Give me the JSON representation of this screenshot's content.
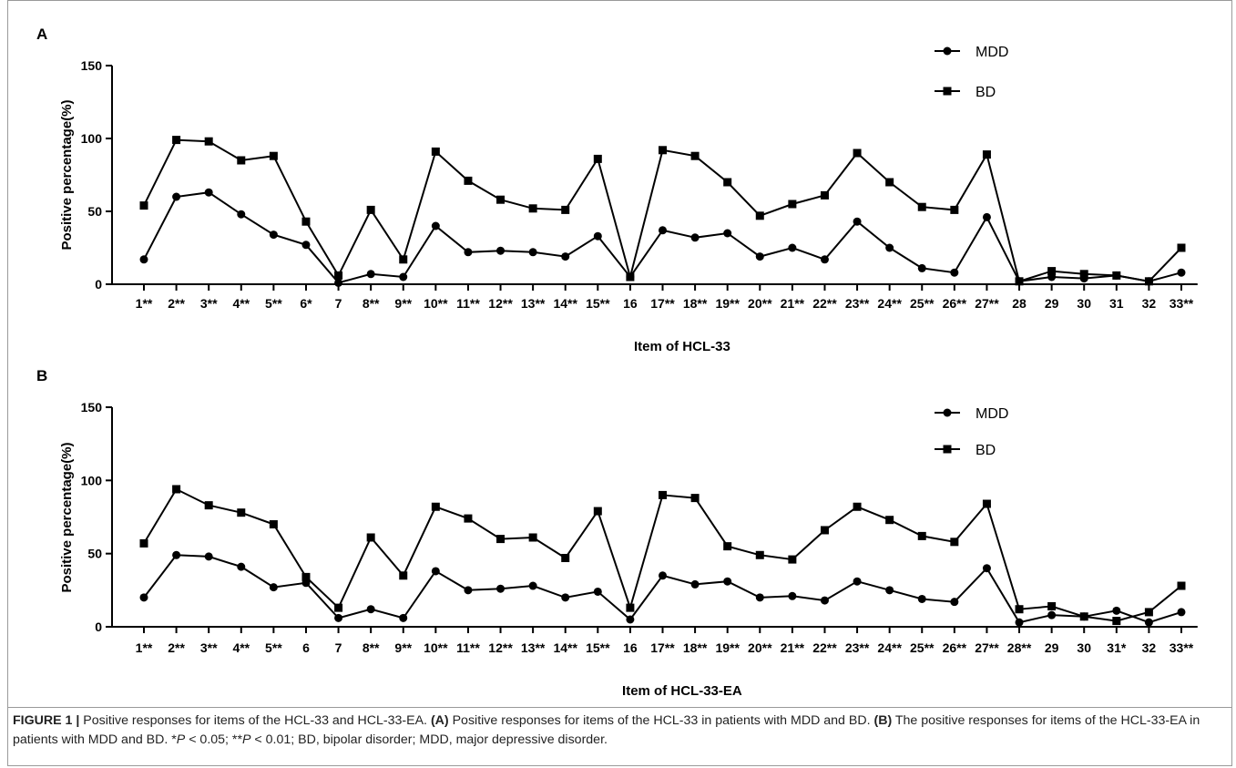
{
  "caption": {
    "label": "FIGURE 1 |",
    "text_1": " Positive responses for items of the HCL-33 and HCL-33-EA. ",
    "panel_a_ref": "(A)",
    "text_2": " Positive responses for items of the HCL-33 in patients with MDD and BD. ",
    "panel_b_ref": "(B)",
    "text_3": " The positive responses for items of the HCL-33-EA in patients with MDD and BD. *",
    "p_symbol_1": "P",
    "text_4": " < 0.05; **",
    "p_symbol_2": "P",
    "text_5": " < 0.01; BD, bipolar disorder; MDD, major depressive disorder."
  },
  "colors": {
    "line": "#000000",
    "background": "#ffffff",
    "frame": "#9a9a9a"
  },
  "chart_data": [
    {
      "panel": "A",
      "type": "line",
      "xlabel": "Item of HCL-33",
      "ylabel": "Positive percentage(%)",
      "ylim": [
        0,
        150
      ],
      "yticks": [
        0,
        50,
        100,
        150
      ],
      "grid": false,
      "legend_position": "top-right",
      "categories": [
        "1**",
        "2**",
        "3**",
        "4**",
        "5**",
        "6*",
        "7",
        "8**",
        "9**",
        "10**",
        "11**",
        "12**",
        "13**",
        "14**",
        "15**",
        "16",
        "17**",
        "18**",
        "19**",
        "20**",
        "21**",
        "22**",
        "23**",
        "24**",
        "25**",
        "26**",
        "27**",
        "28",
        "29",
        "30",
        "31",
        "32",
        "33**"
      ],
      "series": [
        {
          "name": "MDD",
          "marker": "circle",
          "values": [
            17,
            60,
            63,
            48,
            34,
            27,
            1,
            7,
            5,
            40,
            22,
            23,
            22,
            19,
            33,
            5,
            37,
            32,
            35,
            19,
            25,
            17,
            43,
            25,
            11,
            8,
            46,
            2,
            5,
            4,
            6,
            2,
            8
          ]
        },
        {
          "name": "BD",
          "marker": "square",
          "values": [
            54,
            99,
            98,
            85,
            88,
            43,
            6,
            51,
            17,
            91,
            71,
            58,
            52,
            51,
            86,
            5,
            92,
            88,
            70,
            47,
            55,
            61,
            90,
            70,
            53,
            51,
            89,
            2,
            9,
            7,
            6,
            2,
            25
          ]
        }
      ]
    },
    {
      "panel": "B",
      "type": "line",
      "xlabel": "Item of HCL-33-EA",
      "ylabel": "Positive percentage(%)",
      "ylim": [
        0,
        150
      ],
      "yticks": [
        0,
        50,
        100,
        150
      ],
      "grid": false,
      "legend_position": "top-right",
      "categories": [
        "1**",
        "2**",
        "3**",
        "4**",
        "5**",
        "6",
        "7",
        "8**",
        "9**",
        "10**",
        "11**",
        "12**",
        "13**",
        "14**",
        "15**",
        "16",
        "17**",
        "18**",
        "19**",
        "20**",
        "21**",
        "22**",
        "23**",
        "24**",
        "25**",
        "26**",
        "27**",
        "28**",
        "29",
        "30",
        "31*",
        "32",
        "33**"
      ],
      "series": [
        {
          "name": "MDD",
          "marker": "circle",
          "values": [
            20,
            49,
            48,
            41,
            27,
            30,
            6,
            12,
            6,
            38,
            25,
            26,
            28,
            20,
            24,
            5,
            35,
            29,
            31,
            20,
            21,
            18,
            31,
            25,
            19,
            17,
            40,
            3,
            8,
            7,
            11,
            3,
            10
          ]
        },
        {
          "name": "BD",
          "marker": "square",
          "values": [
            57,
            94,
            83,
            78,
            70,
            34,
            13,
            61,
            35,
            82,
            74,
            60,
            61,
            47,
            79,
            13,
            90,
            88,
            55,
            49,
            46,
            66,
            82,
            73,
            62,
            58,
            84,
            12,
            14,
            7,
            4,
            10,
            28
          ]
        }
      ]
    }
  ]
}
